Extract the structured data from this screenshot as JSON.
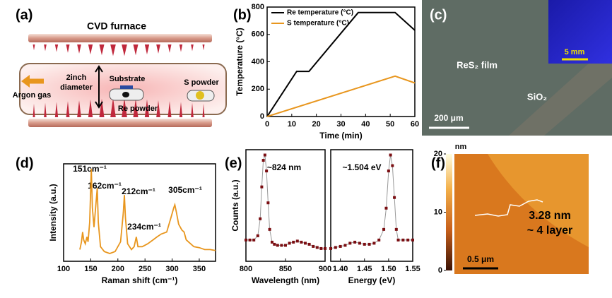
{
  "panel_labels": [
    "(a)",
    "(b)",
    "(c)",
    "(d)",
    "(e)",
    "(f)"
  ],
  "panel_a": {
    "title": "CVD furnace",
    "argon": "Argon gas",
    "diameter": [
      "2inch",
      "diameter"
    ],
    "substrate": "Substrate",
    "re_powder": "Re powder",
    "s_powder": "S powder"
  },
  "panel_c": {
    "film": "ReS₂ film",
    "substrate": "SiO₂",
    "scale_bar": "200 μm",
    "inset_scale_bar": "5 mm"
  },
  "panel_f": {
    "colorbar_unit": "nm",
    "colorbar_lim": [
      0,
      20
    ],
    "colorbar_ticks": [
      0,
      10,
      20
    ],
    "step_height": "3.28 nm",
    "layers": "~ 4 layer",
    "scale_bar": "0.5 μm"
  },
  "chart_data": [
    {
      "type": "line",
      "xlabel": "Time (min)",
      "ylabel": "Temperature (°C)",
      "xlim": [
        0,
        60
      ],
      "ylim": [
        0,
        800
      ],
      "xticks": [
        0,
        10,
        20,
        30,
        40,
        50,
        60
      ],
      "yticks": [
        0,
        200,
        400,
        600,
        800
      ],
      "legend": "upper left",
      "series": [
        {
          "name": "Re temperature (°C)",
          "color": "#000000",
          "x": [
            0,
            12,
            17,
            37,
            52,
            60
          ],
          "values": [
            0,
            330,
            330,
            760,
            760,
            630
          ]
        },
        {
          "name": "S temperature (°C)",
          "color": "#e8961e",
          "x": [
            0,
            52,
            60
          ],
          "values": [
            0,
            295,
            245
          ]
        }
      ]
    },
    {
      "type": "line",
      "xlabel": "Raman shift (cm⁻¹)",
      "ylabel": "Intensity (a.u.)",
      "xlim": [
        100,
        380
      ],
      "ylim": [
        0,
        1
      ],
      "xticks": [
        100,
        150,
        200,
        250,
        300,
        350
      ],
      "color": "#e8961e",
      "annotations": [
        "151cm⁻¹",
        "162cm⁻¹",
        "212cm⁻¹",
        "234cm⁻¹",
        "305cm⁻¹"
      ],
      "x": [
        130,
        133,
        135,
        137,
        140,
        143,
        145,
        148,
        151,
        153,
        156,
        159,
        162,
        164,
        168,
        175,
        185,
        195,
        205,
        210,
        212,
        214,
        218,
        225,
        230,
        234,
        237,
        245,
        255,
        265,
        272,
        280,
        290,
        298,
        303,
        305,
        308,
        312,
        318,
        322,
        326,
        330,
        340,
        350,
        360,
        370,
        380
      ],
      "values": [
        0.12,
        0.2,
        0.3,
        0.22,
        0.18,
        0.25,
        0.2,
        0.4,
        0.95,
        0.55,
        0.35,
        0.55,
        0.75,
        0.4,
        0.15,
        0.1,
        0.08,
        0.1,
        0.2,
        0.5,
        0.68,
        0.45,
        0.18,
        0.12,
        0.15,
        0.25,
        0.15,
        0.15,
        0.18,
        0.22,
        0.25,
        0.28,
        0.3,
        0.45,
        0.55,
        0.58,
        0.5,
        0.38,
        0.32,
        0.3,
        0.22,
        0.2,
        0.15,
        0.14,
        0.12,
        0.12,
        0.11
      ]
    },
    {
      "type": "scatter",
      "xlabel": "Wavelength (nm)",
      "ylabel": "Counts (a.u.)",
      "xlim": [
        800,
        900
      ],
      "ylim": [
        0,
        1.05
      ],
      "xticks": [
        800,
        850,
        900
      ],
      "color": "#7b0e12",
      "line_color": "#999999",
      "annotations": [
        "~824 nm"
      ],
      "x": [
        800,
        805,
        810,
        815,
        818,
        820,
        822,
        824,
        826,
        828,
        830,
        833,
        836,
        840,
        845,
        850,
        855,
        860,
        865,
        870,
        875,
        880,
        885,
        890,
        895,
        900
      ],
      "values": [
        0.2,
        0.2,
        0.2,
        0.24,
        0.4,
        0.7,
        0.95,
        1.0,
        0.85,
        0.55,
        0.3,
        0.18,
        0.16,
        0.15,
        0.15,
        0.15,
        0.17,
        0.18,
        0.19,
        0.18,
        0.17,
        0.16,
        0.14,
        0.13,
        0.12,
        0.12
      ]
    },
    {
      "type": "scatter",
      "xlabel": "Energy (eV)",
      "xlim": [
        1.38,
        1.55
      ],
      "ylim": [
        0,
        1.05
      ],
      "xticks": [
        {
          "value": 1.4,
          "label": "1.40"
        },
        1.45,
        {
          "value": 1.5,
          "label": "1.50"
        },
        1.55
      ],
      "color": "#7b0e12",
      "line_color": "#999999",
      "annotations": [
        "~1.504 eV"
      ],
      "x": [
        1.38,
        1.39,
        1.4,
        1.41,
        1.42,
        1.43,
        1.44,
        1.45,
        1.46,
        1.47,
        1.48,
        1.49,
        1.495,
        1.5,
        1.504,
        1.508,
        1.512,
        1.516,
        1.52,
        1.53,
        1.54,
        1.55
      ],
      "values": [
        0.12,
        0.13,
        0.14,
        0.15,
        0.17,
        0.18,
        0.17,
        0.16,
        0.16,
        0.17,
        0.2,
        0.3,
        0.5,
        0.85,
        1.0,
        0.9,
        0.6,
        0.3,
        0.2,
        0.2,
        0.2,
        0.2
      ]
    }
  ]
}
